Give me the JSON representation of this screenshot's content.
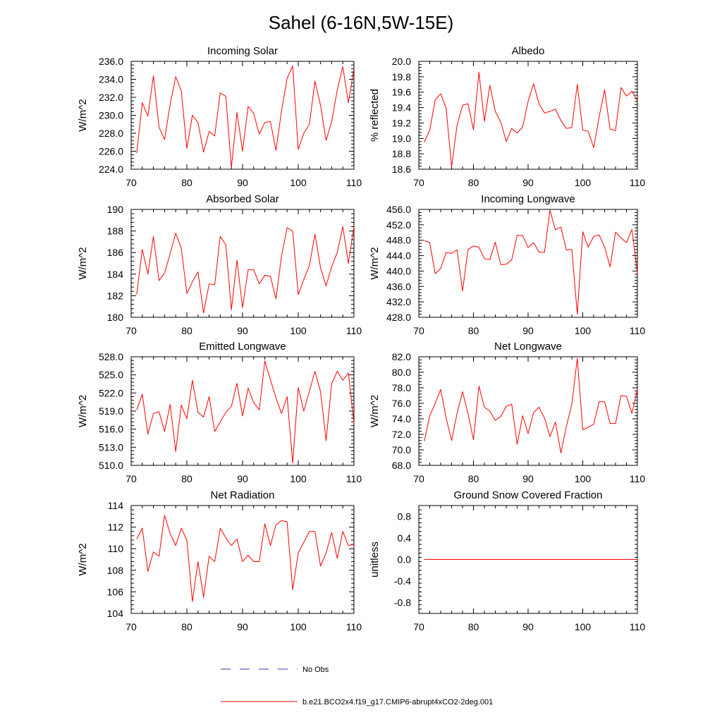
{
  "title": "Sahel (6-16N,5W-15E)",
  "colors": {
    "model": "#ff0000",
    "obs": "#3a3aaf",
    "axis": "#000000"
  },
  "legend": [
    {
      "label": "No Obs",
      "style": "dashed",
      "color": "#3a3aaf"
    },
    {
      "label": "b.e21.BCO2x4.f19_g17.CMIP6-abrupt4xCO2-2deg.001",
      "style": "solid",
      "color": "#ff0000"
    }
  ],
  "chart_data": [
    {
      "type": "line",
      "title": "Incoming Solar",
      "xlabel": "",
      "ylabel": "W/m^2",
      "xlim": [
        70,
        110
      ],
      "ylim": [
        224,
        236
      ],
      "xticks": [
        "70",
        "80",
        "90",
        "100",
        "110"
      ],
      "yticks": [
        "224.0",
        "226.0",
        "228.0",
        "230.0",
        "232.0",
        "234.0",
        "236.0"
      ],
      "x": [
        71,
        72,
        73,
        74,
        75,
        76,
        77,
        78,
        79,
        80,
        81,
        82,
        83,
        84,
        85,
        86,
        87,
        88,
        89,
        90,
        91,
        92,
        93,
        94,
        95,
        96,
        97,
        98,
        99,
        100,
        101,
        102,
        103,
        104,
        105,
        106,
        107,
        108,
        109,
        110
      ],
      "series": [
        {
          "name": "b.e21.BCO2x4.f19_g17.CMIP6-abrupt4xCO2-2deg.001",
          "values": [
            225.8,
            231.4,
            229.9,
            234.4,
            228.7,
            227.3,
            231.2,
            234.3,
            232.7,
            226.3,
            230.0,
            229.2,
            225.9,
            228.2,
            227.7,
            232.5,
            232.1,
            224.2,
            230.3,
            226.0,
            231.0,
            230.2,
            227.9,
            229.2,
            229.3,
            226.1,
            230.5,
            234.1,
            235.5,
            226.2,
            228.0,
            229.0,
            233.8,
            231.1,
            227.2,
            229.3,
            232.8,
            235.4,
            231.4,
            235.2
          ]
        }
      ]
    },
    {
      "type": "line",
      "title": "Albedo",
      "xlabel": "",
      "ylabel": "% reflected",
      "xlim": [
        70,
        110
      ],
      "ylim": [
        18.6,
        20.0
      ],
      "xticks": [
        "70",
        "80",
        "90",
        "100",
        "110"
      ],
      "yticks": [
        "18.6",
        "18.8",
        "19.0",
        "19.2",
        "19.4",
        "19.6",
        "19.8",
        "20.0"
      ],
      "x": [
        71,
        72,
        73,
        74,
        75,
        76,
        77,
        78,
        79,
        80,
        81,
        82,
        83,
        84,
        85,
        86,
        87,
        88,
        89,
        90,
        91,
        92,
        93,
        94,
        95,
        96,
        97,
        98,
        99,
        100,
        101,
        102,
        103,
        104,
        105,
        106,
        107,
        108,
        109,
        110
      ],
      "series": [
        {
          "name": "b.e21.BCO2x4.f19_g17.CMIP6-abrupt4xCO2-2deg.001",
          "values": [
            18.95,
            19.11,
            19.5,
            19.58,
            19.39,
            18.63,
            19.17,
            19.43,
            19.45,
            19.11,
            19.86,
            19.22,
            19.69,
            19.35,
            19.21,
            18.96,
            19.13,
            19.07,
            19.15,
            19.48,
            19.71,
            19.45,
            19.33,
            19.35,
            19.38,
            19.23,
            19.13,
            19.14,
            19.7,
            19.11,
            19.09,
            18.88,
            19.28,
            19.63,
            19.12,
            19.1,
            19.66,
            19.55,
            19.61,
            19.49
          ]
        }
      ]
    },
    {
      "type": "line",
      "title": "Absorbed Solar",
      "xlabel": "",
      "ylabel": "W/m^2",
      "xlim": [
        70,
        110
      ],
      "ylim": [
        180,
        190
      ],
      "xticks": [
        "70",
        "80",
        "90",
        "100",
        "110"
      ],
      "yticks": [
        "180",
        "182",
        "184",
        "186",
        "188",
        "190"
      ],
      "x": [
        71,
        72,
        73,
        74,
        75,
        76,
        77,
        78,
        79,
        80,
        81,
        82,
        83,
        84,
        85,
        86,
        87,
        88,
        89,
        90,
        91,
        92,
        93,
        94,
        95,
        96,
        97,
        98,
        99,
        100,
        101,
        102,
        103,
        104,
        105,
        106,
        107,
        108,
        109,
        110
      ],
      "series": [
        {
          "name": "b.e21.BCO2x4.f19_g17.CMIP6-abrupt4xCO2-2deg.001",
          "values": [
            182.1,
            186.3,
            184.0,
            187.5,
            183.4,
            184.1,
            185.9,
            187.8,
            186.4,
            182.2,
            183.3,
            184.2,
            180.4,
            183.1,
            183.0,
            187.5,
            186.7,
            180.7,
            185.3,
            180.9,
            184.4,
            184.4,
            183.1,
            183.9,
            183.8,
            181.7,
            185.7,
            188.3,
            188.0,
            182.1,
            183.5,
            184.8,
            187.7,
            184.6,
            182.9,
            184.7,
            186.0,
            188.4,
            185.0,
            188.4
          ]
        }
      ]
    },
    {
      "type": "line",
      "title": "Incoming Longwave",
      "xlabel": "",
      "ylabel": "W/m^2",
      "xlim": [
        70,
        110
      ],
      "ylim": [
        428,
        456
      ],
      "xticks": [
        "70",
        "80",
        "90",
        "100",
        "110"
      ],
      "yticks": [
        "428.0",
        "432.0",
        "436.0",
        "440.0",
        "444.0",
        "448.0",
        "452.0",
        "456.0"
      ],
      "x": [
        71,
        72,
        73,
        74,
        75,
        76,
        77,
        78,
        79,
        80,
        81,
        82,
        83,
        84,
        85,
        86,
        87,
        88,
        89,
        90,
        91,
        92,
        93,
        94,
        95,
        96,
        97,
        98,
        99,
        100,
        101,
        102,
        103,
        104,
        105,
        106,
        107,
        108,
        109,
        110
      ],
      "series": [
        {
          "name": "b.e21.BCO2x4.f19_g17.CMIP6-abrupt4xCO2-2deg.001",
          "values": [
            447.9,
            447.4,
            439.3,
            440.7,
            444.8,
            444.6,
            445.5,
            434.8,
            445.6,
            446.5,
            446.2,
            443.2,
            443.0,
            447.5,
            441.6,
            441.8,
            442.9,
            449.3,
            449.2,
            446.1,
            447.4,
            444.9,
            444.9,
            455.8,
            450.7,
            451.4,
            445.5,
            445.6,
            428.8,
            450.2,
            446.2,
            449.0,
            449.4,
            446.2,
            441.1,
            450.1,
            448.6,
            447.4,
            450.8,
            439.3
          ]
        }
      ]
    },
    {
      "type": "line",
      "title": "Emitted Longwave",
      "xlabel": "",
      "ylabel": "W/m^2",
      "xlim": [
        70,
        110
      ],
      "ylim": [
        510,
        528
      ],
      "xticks": [
        "70",
        "80",
        "90",
        "100",
        "110"
      ],
      "yticks": [
        "510.0",
        "513.0",
        "516.0",
        "519.0",
        "522.0",
        "525.0",
        "528.0"
      ],
      "x": [
        71,
        72,
        73,
        74,
        75,
        76,
        77,
        78,
        79,
        80,
        81,
        82,
        83,
        84,
        85,
        86,
        87,
        88,
        89,
        90,
        91,
        92,
        93,
        94,
        95,
        96,
        97,
        98,
        99,
        100,
        101,
        102,
        103,
        104,
        105,
        106,
        107,
        108,
        109,
        110
      ],
      "series": [
        {
          "name": "b.e21.BCO2x4.f19_g17.CMIP6-abrupt4xCO2-2deg.001",
          "values": [
            519.2,
            521.8,
            515.2,
            518.6,
            518.9,
            515.6,
            520.1,
            512.3,
            520.0,
            517.7,
            524.1,
            518.8,
            518.0,
            521.4,
            515.6,
            517.2,
            518.8,
            519.8,
            523.6,
            518.2,
            522.8,
            520.4,
            519.2,
            527.3,
            524.2,
            521.2,
            518.6,
            521.4,
            510.4,
            522.9,
            519.0,
            522.3,
            525.6,
            522.2,
            514.1,
            523.5,
            525.6,
            524.1,
            525.3,
            517.0
          ]
        }
      ]
    },
    {
      "type": "line",
      "title": "Net Longwave",
      "xlabel": "",
      "ylabel": "W/m^2",
      "xlim": [
        70,
        110
      ],
      "ylim": [
        68,
        82
      ],
      "xticks": [
        "70",
        "80",
        "90",
        "100",
        "110"
      ],
      "yticks": [
        "68.0",
        "70.0",
        "72.0",
        "74.0",
        "76.0",
        "78.0",
        "80.0",
        "82.0"
      ],
      "x": [
        71,
        72,
        73,
        74,
        75,
        76,
        77,
        78,
        79,
        80,
        81,
        82,
        83,
        84,
        85,
        86,
        87,
        88,
        89,
        90,
        91,
        92,
        93,
        94,
        95,
        96,
        97,
        98,
        99,
        100,
        101,
        102,
        103,
        104,
        105,
        106,
        107,
        108,
        109,
        110
      ],
      "series": [
        {
          "name": "b.e21.BCO2x4.f19_g17.CMIP6-abrupt4xCO2-2deg.001",
          "values": [
            71.1,
            74.4,
            76.0,
            77.8,
            74.1,
            71.2,
            74.7,
            77.5,
            74.7,
            71.3,
            78.2,
            75.5,
            75.0,
            73.8,
            74.3,
            75.6,
            75.9,
            70.7,
            74.4,
            72.1,
            74.8,
            75.5,
            74.1,
            71.7,
            73.6,
            69.6,
            73.0,
            75.9,
            81.8,
            72.6,
            72.9,
            73.3,
            76.2,
            76.2,
            73.4,
            73.4,
            77.0,
            76.9,
            74.7,
            77.8
          ]
        }
      ]
    },
    {
      "type": "line",
      "title": "Net Radiation",
      "xlabel": "",
      "ylabel": "W/m^2",
      "xlim": [
        70,
        110
      ],
      "ylim": [
        104,
        114
      ],
      "xticks": [
        "70",
        "80",
        "90",
        "100",
        "110"
      ],
      "yticks": [
        "104",
        "106",
        "108",
        "110",
        "112",
        "114"
      ],
      "x": [
        71,
        72,
        73,
        74,
        75,
        76,
        77,
        78,
        79,
        80,
        81,
        82,
        83,
        84,
        85,
        86,
        87,
        88,
        89,
        90,
        91,
        92,
        93,
        94,
        95,
        96,
        97,
        98,
        99,
        100,
        101,
        102,
        103,
        104,
        105,
        106,
        107,
        108,
        109,
        110
      ],
      "series": [
        {
          "name": "b.e21.BCO2x4.f19_g17.CMIP6-abrupt4xCO2-2deg.001",
          "values": [
            110.9,
            111.9,
            107.9,
            109.7,
            109.3,
            113.1,
            111.4,
            110.3,
            111.9,
            110.8,
            105.1,
            108.8,
            105.5,
            109.3,
            108.8,
            111.9,
            111.0,
            110.3,
            110.9,
            108.8,
            109.4,
            108.8,
            108.8,
            112.3,
            110.3,
            112.2,
            112.6,
            112.5,
            106.2,
            109.6,
            110.6,
            111.6,
            111.6,
            108.4,
            109.6,
            111.5,
            109.1,
            111.6,
            110.3,
            110.4
          ]
        }
      ]
    },
    {
      "type": "line",
      "title": "Ground Snow Covered Fraction",
      "xlabel": "",
      "ylabel": "unitless",
      "xlim": [
        70,
        110
      ],
      "ylim": [
        -1.0,
        1.0
      ],
      "xticks": [
        "70",
        "80",
        "90",
        "100",
        "110"
      ],
      "yticks": [
        "-0.8",
        "-0.4",
        "0.0",
        "0.4",
        "0.8"
      ],
      "x": [
        71,
        110
      ],
      "series": [
        {
          "name": "b.e21.BCO2x4.f19_g17.CMIP6-abrupt4xCO2-2deg.001",
          "values": [
            0.0,
            0.0
          ]
        }
      ]
    }
  ]
}
